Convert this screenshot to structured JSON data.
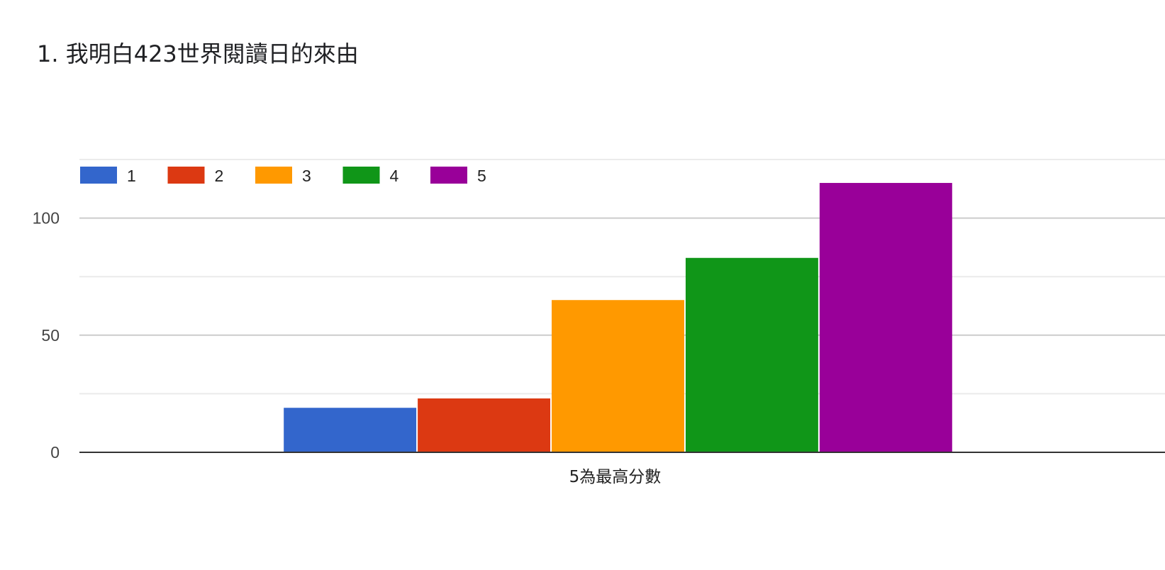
{
  "chart_data": {
    "type": "bar",
    "title": "1. 我明白423世界閱讀日的來由",
    "categories": [
      "5為最高分數"
    ],
    "series": [
      {
        "name": "1",
        "color": "#3366cc",
        "values": [
          19
        ]
      },
      {
        "name": "2",
        "color": "#dc3912",
        "values": [
          23
        ]
      },
      {
        "name": "3",
        "color": "#ff9900",
        "values": [
          65
        ]
      },
      {
        "name": "4",
        "color": "#109618",
        "values": [
          83
        ]
      },
      {
        "name": "5",
        "color": "#990099",
        "values": [
          115
        ]
      }
    ],
    "yticks": [
      0,
      50,
      100
    ],
    "ylim": [
      0,
      125
    ],
    "grid": true,
    "legend_position": "top-left"
  }
}
